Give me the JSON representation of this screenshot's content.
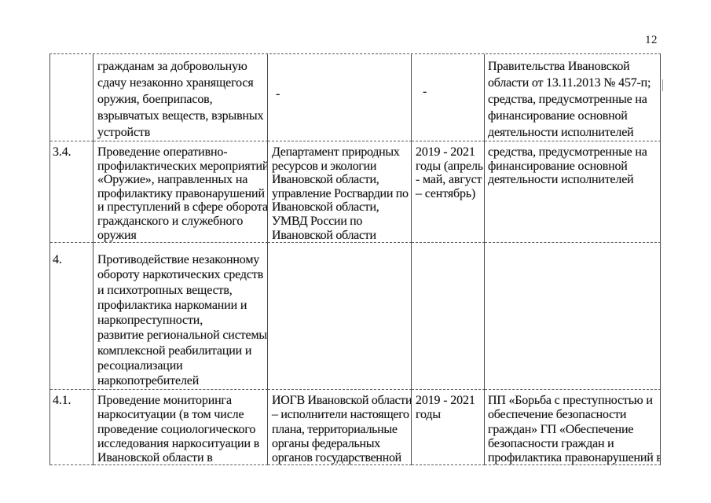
{
  "page": {
    "number": "12"
  },
  "table": {
    "rows": [
      {
        "num": "",
        "activity": "гражданам за добровольную\nсдачу незаконно хранящегося\nоружия, боеприпасов,\nвзрывчатых веществ, взрывных\nустройств",
        "executors": "-",
        "period": "-",
        "funding": "Правительства Ивановской\nобласти от 13.11.2013 № 457-п;\nсредства, предусмотренные на\nфинансирование основной\nдеятельности исполнителей"
      },
      {
        "num": "3.4.",
        "activity": "Проведение оперативно-\nпрофилактических мероприятий\n«Оружие», направленных на\nпрофилактику правонарушений\nи преступлений в сфере оборота\nгражданского и служебного\nоружия",
        "executors": "Департамент природных\nресурсов и экологии\nИвановской области,\nуправление Росгвардии по\nИвановской области,\nУМВД России по\nИвановской области",
        "period": "2019 - 2021\nгоды (апрель\n- май, август\n– сентябрь)",
        "funding": "средства, предусмотренные на\nфинансирование основной\nдеятельности исполнителей"
      },
      {
        "num": "4.",
        "activity": "Противодействие незаконному\nобороту наркотических средств\nи психотропных веществ,\nпрофилактика наркомании и\nнаркопреступности,\nразвитие региональной системы\nкомплексной реабилитации и\nресоциализации\nнаркопотребителей",
        "executors": "",
        "period": "",
        "funding": ""
      },
      {
        "num": "4.1.",
        "activity": "Проведение мониторинга\nнаркоситуации (в том числе\nпроведение социологического\nисследования наркоситуации в\nИвановской области в",
        "executors": "ИОГВ Ивановской области\n– исполнители настоящего\nплана, территориальные\nорганы федеральных\nорганов государственной",
        "period": "2019 - 2021\nгоды",
        "funding": "ПП «Борьба с преступностью и\nобеспечение безопасности\nграждан» ГП «Обеспечение\nбезопасности граждан и\nпрофилактика правонарушений в"
      }
    ]
  }
}
